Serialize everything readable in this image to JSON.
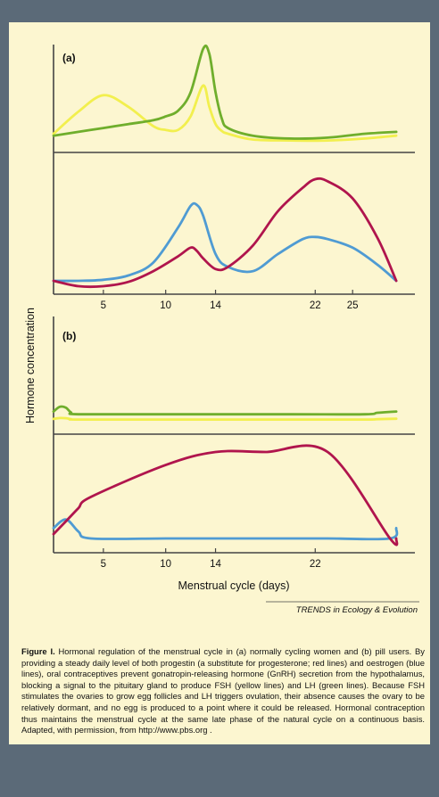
{
  "colors": {
    "background": "#5b6a78",
    "panel": "#fcf6d0",
    "FSH": "#f2ef4e",
    "LH": "#6fae2c",
    "progestin": "#b0154d",
    "oestrogen": "#4f9bd3"
  },
  "chart_data": [
    {
      "panel": "(a)",
      "type": "line",
      "subplot": "upper",
      "x": [
        1,
        3,
        5,
        7,
        9,
        10,
        11,
        12,
        13,
        13.5,
        14,
        14.5,
        15,
        17,
        20,
        23,
        26,
        28.5
      ],
      "series": [
        {
          "key": "FSH",
          "values": [
            0.12,
            0.35,
            0.52,
            0.4,
            0.2,
            0.16,
            0.16,
            0.3,
            0.62,
            0.4,
            0.22,
            0.15,
            0.12,
            0.06,
            0.05,
            0.05,
            0.07,
            0.1
          ]
        },
        {
          "key": "LH",
          "values": [
            0.1,
            0.14,
            0.18,
            0.22,
            0.26,
            0.3,
            0.36,
            0.55,
            1.0,
            0.95,
            0.55,
            0.28,
            0.18,
            0.1,
            0.07,
            0.08,
            0.12,
            0.14
          ]
        }
      ]
    },
    {
      "panel": "(a)",
      "type": "line",
      "subplot": "lower",
      "x": [
        1,
        3,
        5,
        7,
        9,
        11,
        12,
        12.5,
        13,
        14,
        15,
        17,
        19,
        21,
        22,
        23,
        25,
        27,
        28.5
      ],
      "series": [
        {
          "key": "oestrogen",
          "values": [
            0.05,
            0.05,
            0.06,
            0.1,
            0.22,
            0.55,
            0.75,
            0.76,
            0.66,
            0.3,
            0.18,
            0.14,
            0.3,
            0.44,
            0.46,
            0.44,
            0.36,
            0.2,
            0.05
          ]
        },
        {
          "key": "progestin",
          "values": [
            0.05,
            0.0,
            0.0,
            0.04,
            0.14,
            0.28,
            0.36,
            0.33,
            0.26,
            0.16,
            0.18,
            0.38,
            0.7,
            0.92,
            1.0,
            0.98,
            0.82,
            0.45,
            0.05
          ]
        }
      ],
      "xticks": [
        5,
        10,
        14,
        22,
        25
      ]
    },
    {
      "panel": "(b)",
      "type": "line",
      "subplot": "upper",
      "x": [
        1,
        1.5,
        2,
        2.4,
        3,
        10,
        20,
        26,
        27,
        28.5
      ],
      "series": [
        {
          "key": "FSH",
          "values": [
            0.05,
            0.1,
            0.09,
            0.04,
            0.02,
            0.02,
            0.02,
            0.02,
            0.04,
            0.06
          ]
        },
        {
          "key": "LH",
          "values": [
            0.45,
            0.7,
            0.65,
            0.4,
            0.3,
            0.3,
            0.3,
            0.3,
            0.38,
            0.45
          ]
        }
      ]
    },
    {
      "panel": "(b)",
      "type": "line",
      "subplot": "lower",
      "x": [
        1,
        2,
        3,
        4,
        10,
        14,
        18,
        23,
        28,
        28.5
      ],
      "series": [
        {
          "key": "oestrogen",
          "values": [
            0.12,
            0.22,
            0.08,
            0.0,
            0.0,
            0.0,
            0.0,
            0.0,
            0.0,
            0.12
          ]
        },
        {
          "key": "progestin",
          "values": [
            0.05,
            0.2,
            0.35,
            0.48,
            0.85,
            1.0,
            1.0,
            1.0,
            0.0,
            0.0
          ]
        }
      ],
      "xticks": [
        5,
        10,
        14,
        22
      ]
    }
  ],
  "axes": {
    "ylabel": "Hormone concentration",
    "xlabel": "Menstrual cycle (days)",
    "xlim": [
      1,
      30
    ]
  },
  "credit": "TRENDS in Ecology & Evolution",
  "caption": {
    "label": "Figure I.",
    "text": "Hormonal regulation of the menstrual cycle in (a) normally cycling women and (b) pill users. By providing a steady daily level of both progestin (a substitute for progesterone; red lines) and oestrogen (blue lines), oral contraceptives prevent gonatropin-releasing hormone (GnRH) secretion from the hypothalamus, blocking a signal to the pituitary gland to produce FSH (yellow lines) and LH (green lines). Because FSH stimulates the ovaries to grow egg follicles and LH triggers ovulation, their absence causes the ovary to be relatively dormant, and no egg is produced to a point where it could be released. Hormonal contraception thus maintains the menstrual cycle at the same late phase of the natural cycle on a continuous basis. Adapted, with permission, from http://www.pbs.org ."
  }
}
